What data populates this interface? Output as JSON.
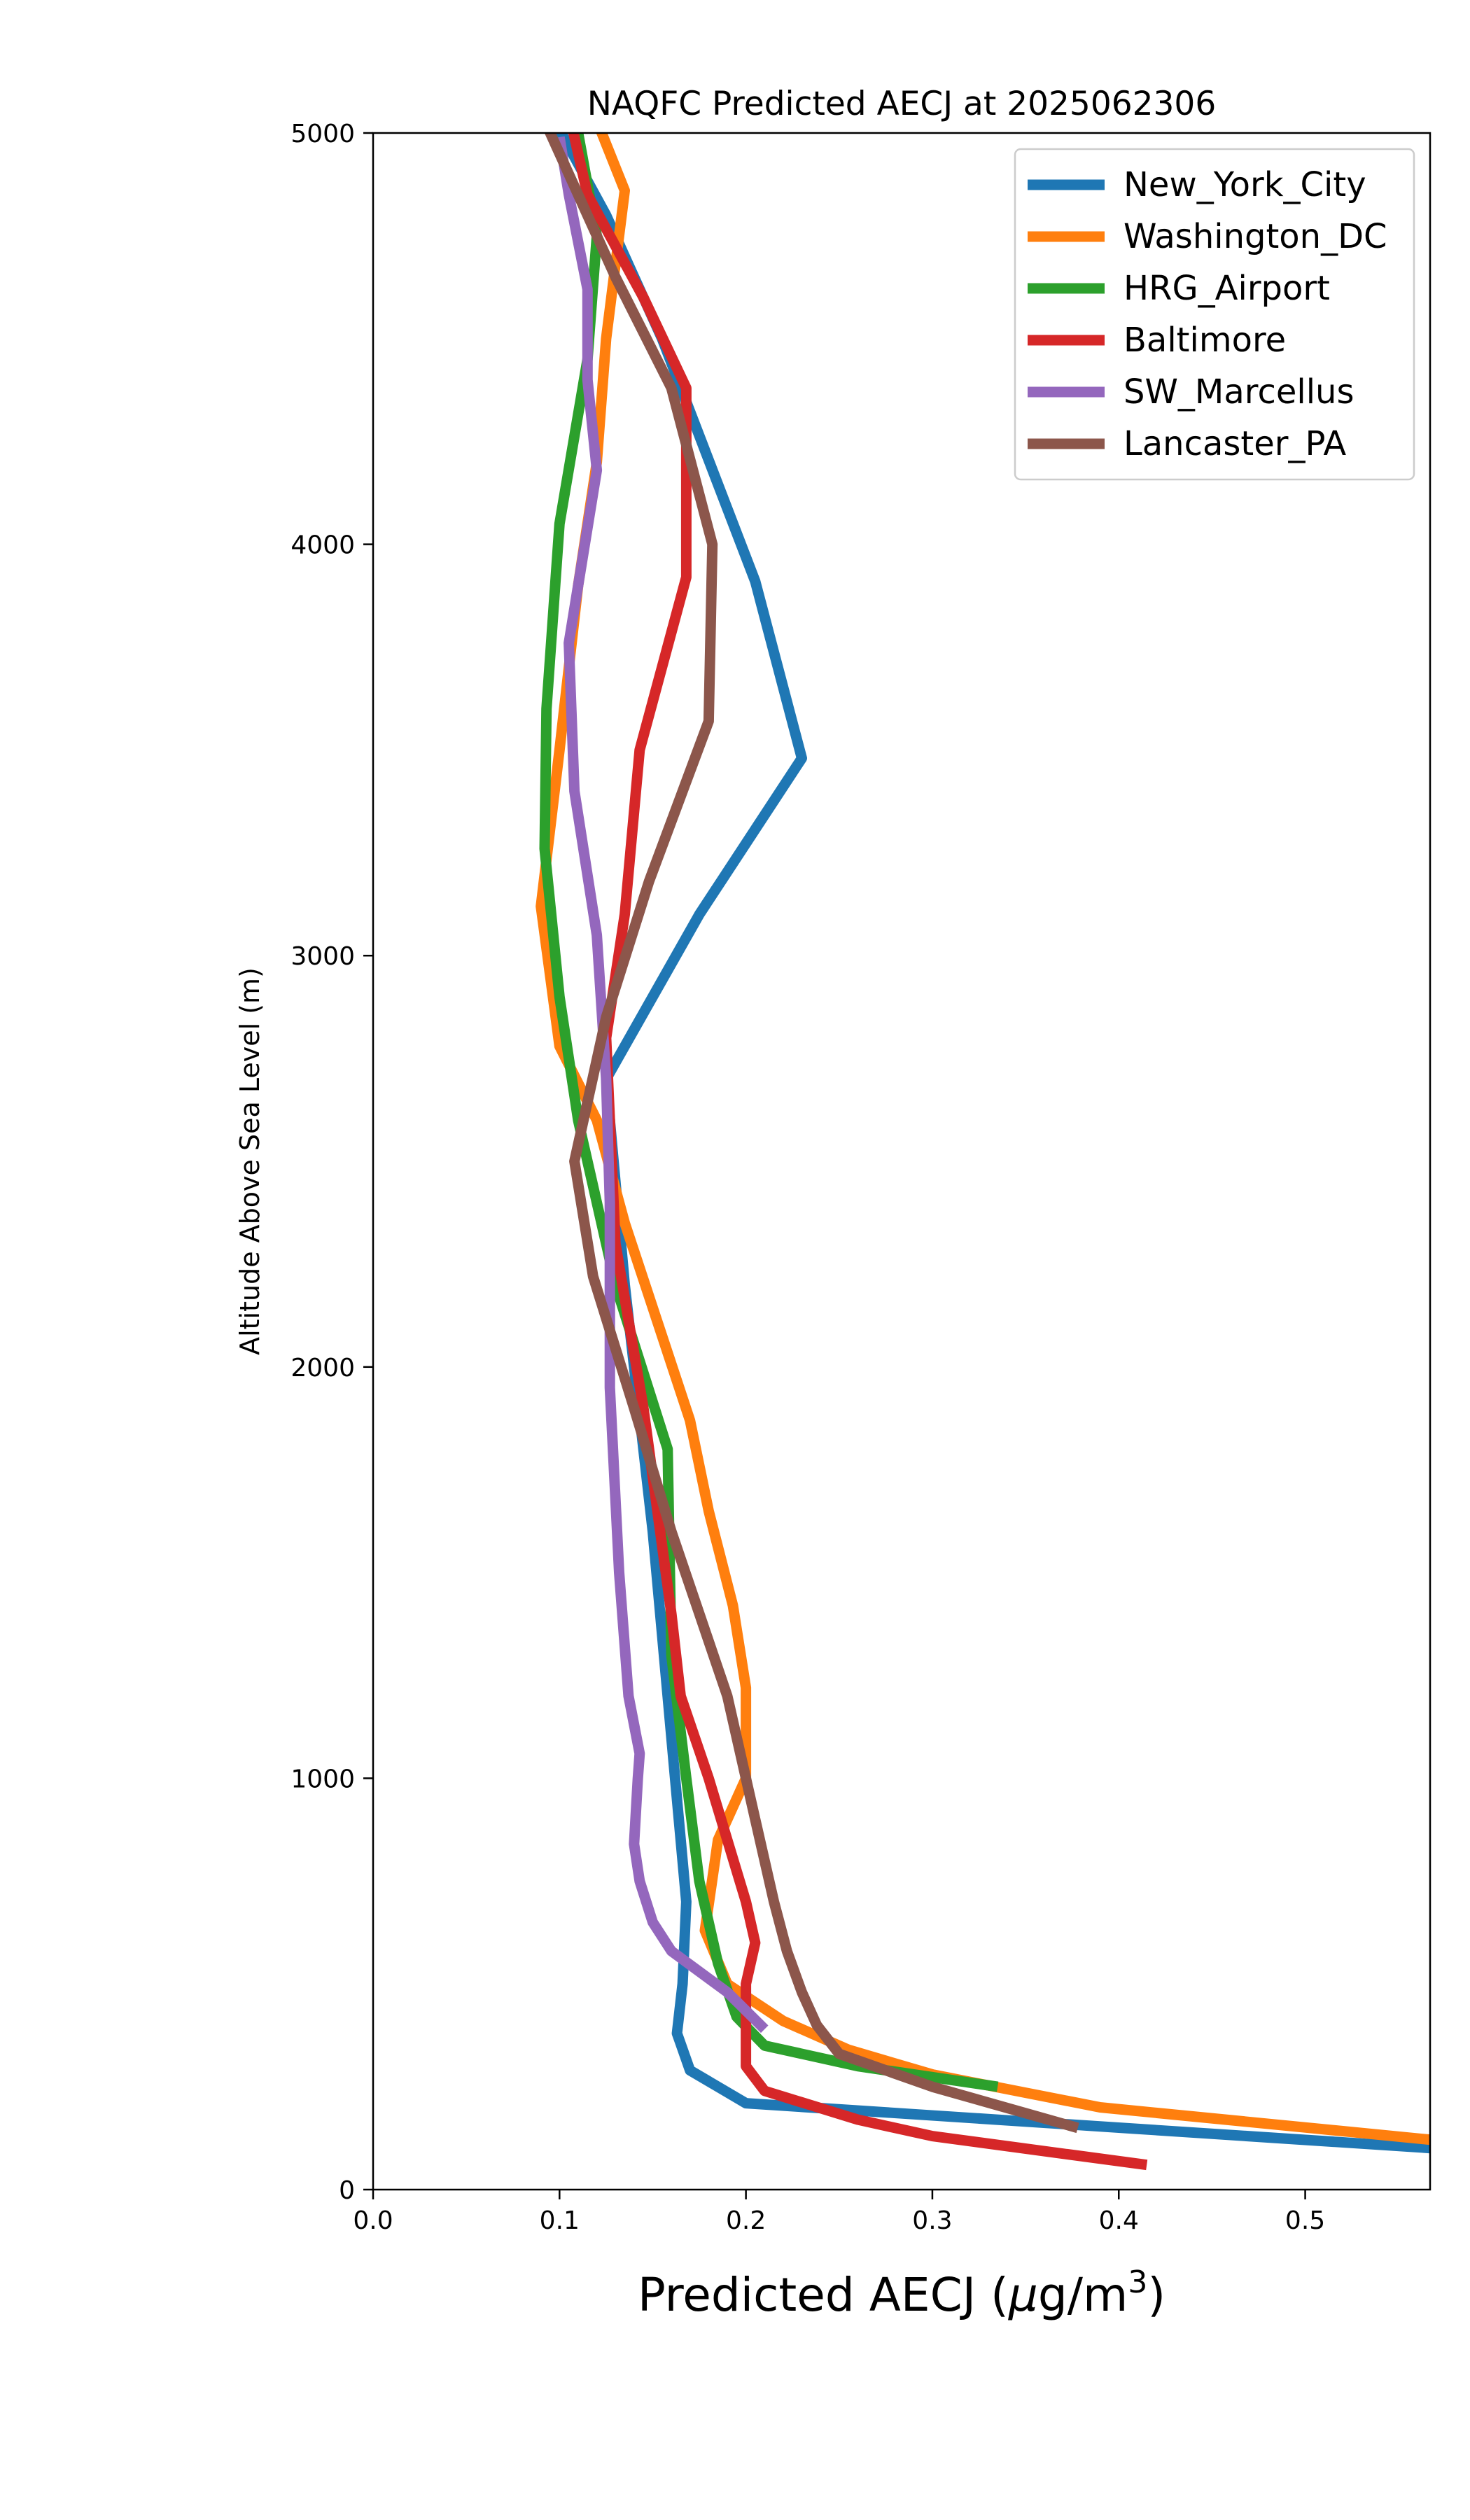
{
  "chart_data": {
    "type": "line",
    "title": "NAQFC Predicted AECJ at 2025062306",
    "xlabel_main": "Predicted AECJ (",
    "xlabel_mu": "μ",
    "xlabel_unit": "g/m",
    "xlabel_sup": "3",
    "xlabel_close": ")",
    "ylabel": "Altitude Above Sea Level (m)",
    "xlim": [
      0,
      0.567
    ],
    "ylim": [
      0,
      5000
    ],
    "x_ticks": [
      0.0,
      0.1,
      0.2,
      0.3,
      0.4,
      0.5
    ],
    "x_tick_labels": [
      "0.0",
      "0.1",
      "0.2",
      "0.3",
      "0.4",
      "0.5"
    ],
    "y_ticks": [
      0,
      1000,
      2000,
      3000,
      4000,
      5000
    ],
    "y_tick_labels": [
      "0",
      "1000",
      "2000",
      "3000",
      "4000",
      "5000"
    ],
    "grid": false,
    "legend_position": "top-right",
    "series": [
      {
        "name": "New_York_City",
        "color": "#1f77b4",
        "points": [
          [
            0.57,
            100
          ],
          [
            0.2,
            210
          ],
          [
            0.17,
            290
          ],
          [
            0.163,
            380
          ],
          [
            0.166,
            500
          ],
          [
            0.168,
            700
          ],
          [
            0.162,
            1000
          ],
          [
            0.15,
            1600
          ],
          [
            0.135,
            2200
          ],
          [
            0.125,
            2700
          ],
          [
            0.175,
            3100
          ],
          [
            0.23,
            3480
          ],
          [
            0.205,
            3910
          ],
          [
            0.155,
            4500
          ],
          [
            0.125,
            4800
          ],
          [
            0.095,
            5050
          ]
        ]
      },
      {
        "name": "Washington_DC",
        "color": "#ff7f0e",
        "points": [
          [
            0.57,
            120
          ],
          [
            0.39,
            200
          ],
          [
            0.3,
            280
          ],
          [
            0.255,
            340
          ],
          [
            0.22,
            410
          ],
          [
            0.19,
            500
          ],
          [
            0.178,
            630
          ],
          [
            0.185,
            850
          ],
          [
            0.2,
            1000
          ],
          [
            0.2,
            1220
          ],
          [
            0.193,
            1420
          ],
          [
            0.18,
            1650
          ],
          [
            0.17,
            1870
          ],
          [
            0.135,
            2350
          ],
          [
            0.12,
            2600
          ],
          [
            0.1,
            2780
          ],
          [
            0.09,
            3120
          ],
          [
            0.1,
            3500
          ],
          [
            0.11,
            3900
          ],
          [
            0.12,
            4200
          ],
          [
            0.125,
            4500
          ],
          [
            0.135,
            4860
          ],
          [
            0.12,
            5030
          ]
        ]
      },
      {
        "name": "HRG_Airport",
        "color": "#2ca02c",
        "points": [
          [
            0.335,
            250
          ],
          [
            0.26,
            300
          ],
          [
            0.21,
            350
          ],
          [
            0.195,
            420
          ],
          [
            0.185,
            550
          ],
          [
            0.175,
            750
          ],
          [
            0.168,
            1000
          ],
          [
            0.16,
            1300
          ],
          [
            0.158,
            1800
          ],
          [
            0.13,
            2200
          ],
          [
            0.11,
            2600
          ],
          [
            0.1,
            2900
          ],
          [
            0.092,
            3260
          ],
          [
            0.093,
            3600
          ],
          [
            0.1,
            4050
          ],
          [
            0.115,
            4450
          ],
          [
            0.12,
            4750
          ],
          [
            0.11,
            5000
          ]
        ]
      },
      {
        "name": "Baltimore",
        "color": "#d62728",
        "points": [
          [
            0.415,
            60
          ],
          [
            0.3,
            130
          ],
          [
            0.26,
            170
          ],
          [
            0.21,
            240
          ],
          [
            0.2,
            300
          ],
          [
            0.2,
            400
          ],
          [
            0.2,
            500
          ],
          [
            0.205,
            600
          ],
          [
            0.2,
            700
          ],
          [
            0.18,
            1000
          ],
          [
            0.165,
            1200
          ],
          [
            0.16,
            1400
          ],
          [
            0.145,
            1900
          ],
          [
            0.13,
            2300
          ],
          [
            0.125,
            2800
          ],
          [
            0.135,
            3100
          ],
          [
            0.143,
            3500
          ],
          [
            0.168,
            3920
          ],
          [
            0.168,
            4380
          ],
          [
            0.145,
            4600
          ],
          [
            0.115,
            4850
          ],
          [
            0.105,
            5050
          ]
        ]
      },
      {
        "name": "SW_Marcellus",
        "color": "#9467bd",
        "points": [
          [
            0.21,
            390
          ],
          [
            0.19,
            480
          ],
          [
            0.16,
            580
          ],
          [
            0.15,
            650
          ],
          [
            0.143,
            750
          ],
          [
            0.14,
            840
          ],
          [
            0.142,
            1000
          ],
          [
            0.143,
            1060
          ],
          [
            0.137,
            1200
          ],
          [
            0.132,
            1500
          ],
          [
            0.127,
            1950
          ],
          [
            0.127,
            2400
          ],
          [
            0.125,
            2700
          ],
          [
            0.12,
            3050
          ],
          [
            0.108,
            3400
          ],
          [
            0.105,
            3760
          ],
          [
            0.12,
            4180
          ],
          [
            0.115,
            4400
          ],
          [
            0.115,
            4620
          ],
          [
            0.105,
            4850
          ],
          [
            0.1,
            4990
          ]
        ]
      },
      {
        "name": "Lancaster_PA",
        "color": "#8c564b",
        "points": [
          [
            0.378,
            150
          ],
          [
            0.3,
            250
          ],
          [
            0.25,
            330
          ],
          [
            0.238,
            400
          ],
          [
            0.23,
            480
          ],
          [
            0.222,
            580
          ],
          [
            0.215,
            700
          ],
          [
            0.205,
            900
          ],
          [
            0.19,
            1200
          ],
          [
            0.16,
            1600
          ],
          [
            0.14,
            1900
          ],
          [
            0.118,
            2220
          ],
          [
            0.108,
            2500
          ],
          [
            0.125,
            2850
          ],
          [
            0.148,
            3180
          ],
          [
            0.18,
            3570
          ],
          [
            0.182,
            4000
          ],
          [
            0.16,
            4380
          ],
          [
            0.13,
            4650
          ],
          [
            0.1,
            4950
          ],
          [
            0.09,
            5050
          ]
        ]
      }
    ]
  }
}
